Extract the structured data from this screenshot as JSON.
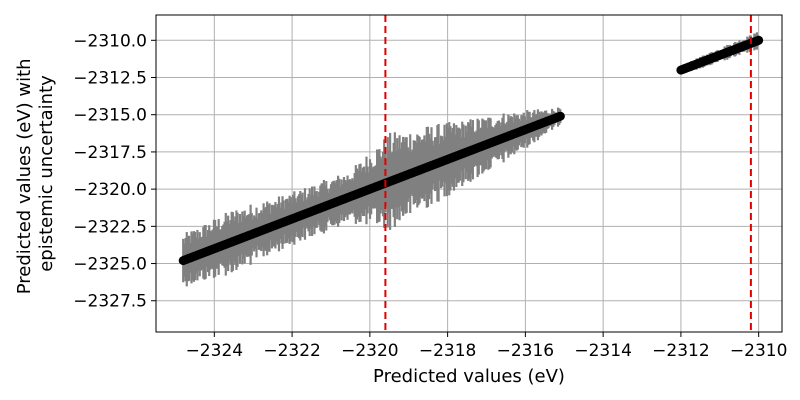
{
  "chart_data": {
    "type": "scatter",
    "xlabel": "Predicted values (eV)",
    "ylabel_lines": [
      "Predicted values (eV) with",
      "epistemic uncertainty"
    ],
    "xlim": [
      -2325.5,
      -2309.4
    ],
    "ylim": [
      -2329.6,
      -2308.3
    ],
    "x_ticks": [
      -2324,
      -2322,
      -2320,
      -2318,
      -2316,
      -2314,
      -2312,
      -2310
    ],
    "x_tick_labels": [
      "−2324",
      "−2322",
      "−2320",
      "−2318",
      "−2316",
      "−2314",
      "−2312",
      "−2310"
    ],
    "y_ticks": [
      -2310.0,
      -2312.5,
      -2315.0,
      -2317.5,
      -2320.0,
      -2322.5,
      -2325.0,
      -2327.5
    ],
    "y_tick_labels": [
      "−2310.0",
      "−2312.5",
      "−2315.0",
      "−2317.5",
      "−2320.0",
      "−2322.5",
      "−2325.0",
      "−2327.5"
    ],
    "grid": true,
    "vlines": [
      {
        "x": -2319.6,
        "color": "#e00000",
        "style": "dashed"
      },
      {
        "x": -2310.2,
        "color": "#e00000",
        "style": "dashed"
      }
    ],
    "clusters": [
      {
        "x_range": [
          -2324.8,
          -2315.1
        ],
        "count": 320,
        "color": "#000000",
        "errorbar_color": "#808080",
        "uncertainty_profile": [
          {
            "x": -2324.8,
            "half_width": 1.8
          },
          {
            "x": -2323.5,
            "half_width": 2.2
          },
          {
            "x": -2322.0,
            "half_width": 1.8
          },
          {
            "x": -2320.5,
            "half_width": 1.8
          },
          {
            "x": -2319.5,
            "half_width": 3.3
          },
          {
            "x": -2318.5,
            "half_width": 2.8
          },
          {
            "x": -2317.5,
            "half_width": 2.2
          },
          {
            "x": -2316.5,
            "half_width": 1.7
          },
          {
            "x": -2315.1,
            "half_width": 0.6
          }
        ]
      },
      {
        "x_range": [
          -2312.0,
          -2310.0
        ],
        "count": 90,
        "color": "#000000",
        "errorbar_color": "#808080",
        "uncertainty_profile": [
          {
            "x": -2312.0,
            "half_width": 0.3
          },
          {
            "x": -2311.0,
            "half_width": 0.5
          },
          {
            "x": -2310.0,
            "half_width": 0.6
          }
        ]
      }
    ]
  }
}
